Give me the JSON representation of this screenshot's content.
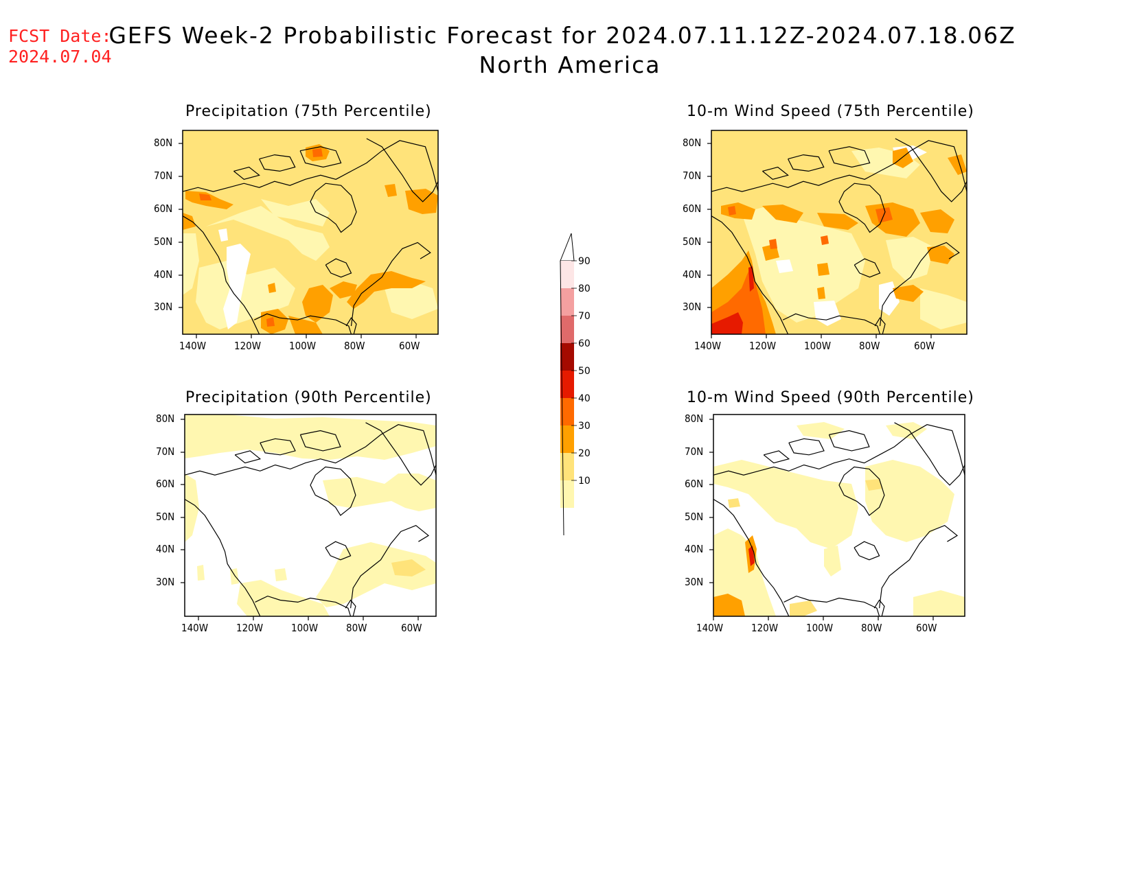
{
  "header": {
    "fcst_label": "FCST Date:",
    "fcst_date": "2024.07.04",
    "title": "GEFS Week-2 Probabilistic Forecast for 2024.07.11.12Z-2024.07.18.06Z",
    "subtitle": "North America"
  },
  "panels": [
    {
      "id": "precip-75",
      "title": "Precipitation (75th Percentile)"
    },
    {
      "id": "wind-75",
      "title": "10-m Wind Speed (75th Percentile)"
    },
    {
      "id": "precip-90",
      "title": "Precipitation (90th Percentile)"
    },
    {
      "id": "wind-90",
      "title": "10-m Wind Speed (90th Percentile)"
    }
  ],
  "axes": {
    "lat_labels": [
      "80N",
      "70N",
      "60N",
      "50N",
      "40N",
      "30N"
    ],
    "lon_labels": [
      "140W",
      "120W",
      "100W",
      "80W",
      "60W"
    ]
  },
  "colorbar": {
    "levels": [
      "10",
      "20",
      "30",
      "40",
      "50",
      "60",
      "70",
      "80",
      "90"
    ],
    "colors": [
      "#fff7b0",
      "#ffe37a",
      "#ffa000",
      "#ff6a00",
      "#e61a00",
      "#a50a00",
      "#e06a6a",
      "#f4a0a0",
      "#fde6e6"
    ]
  }
}
